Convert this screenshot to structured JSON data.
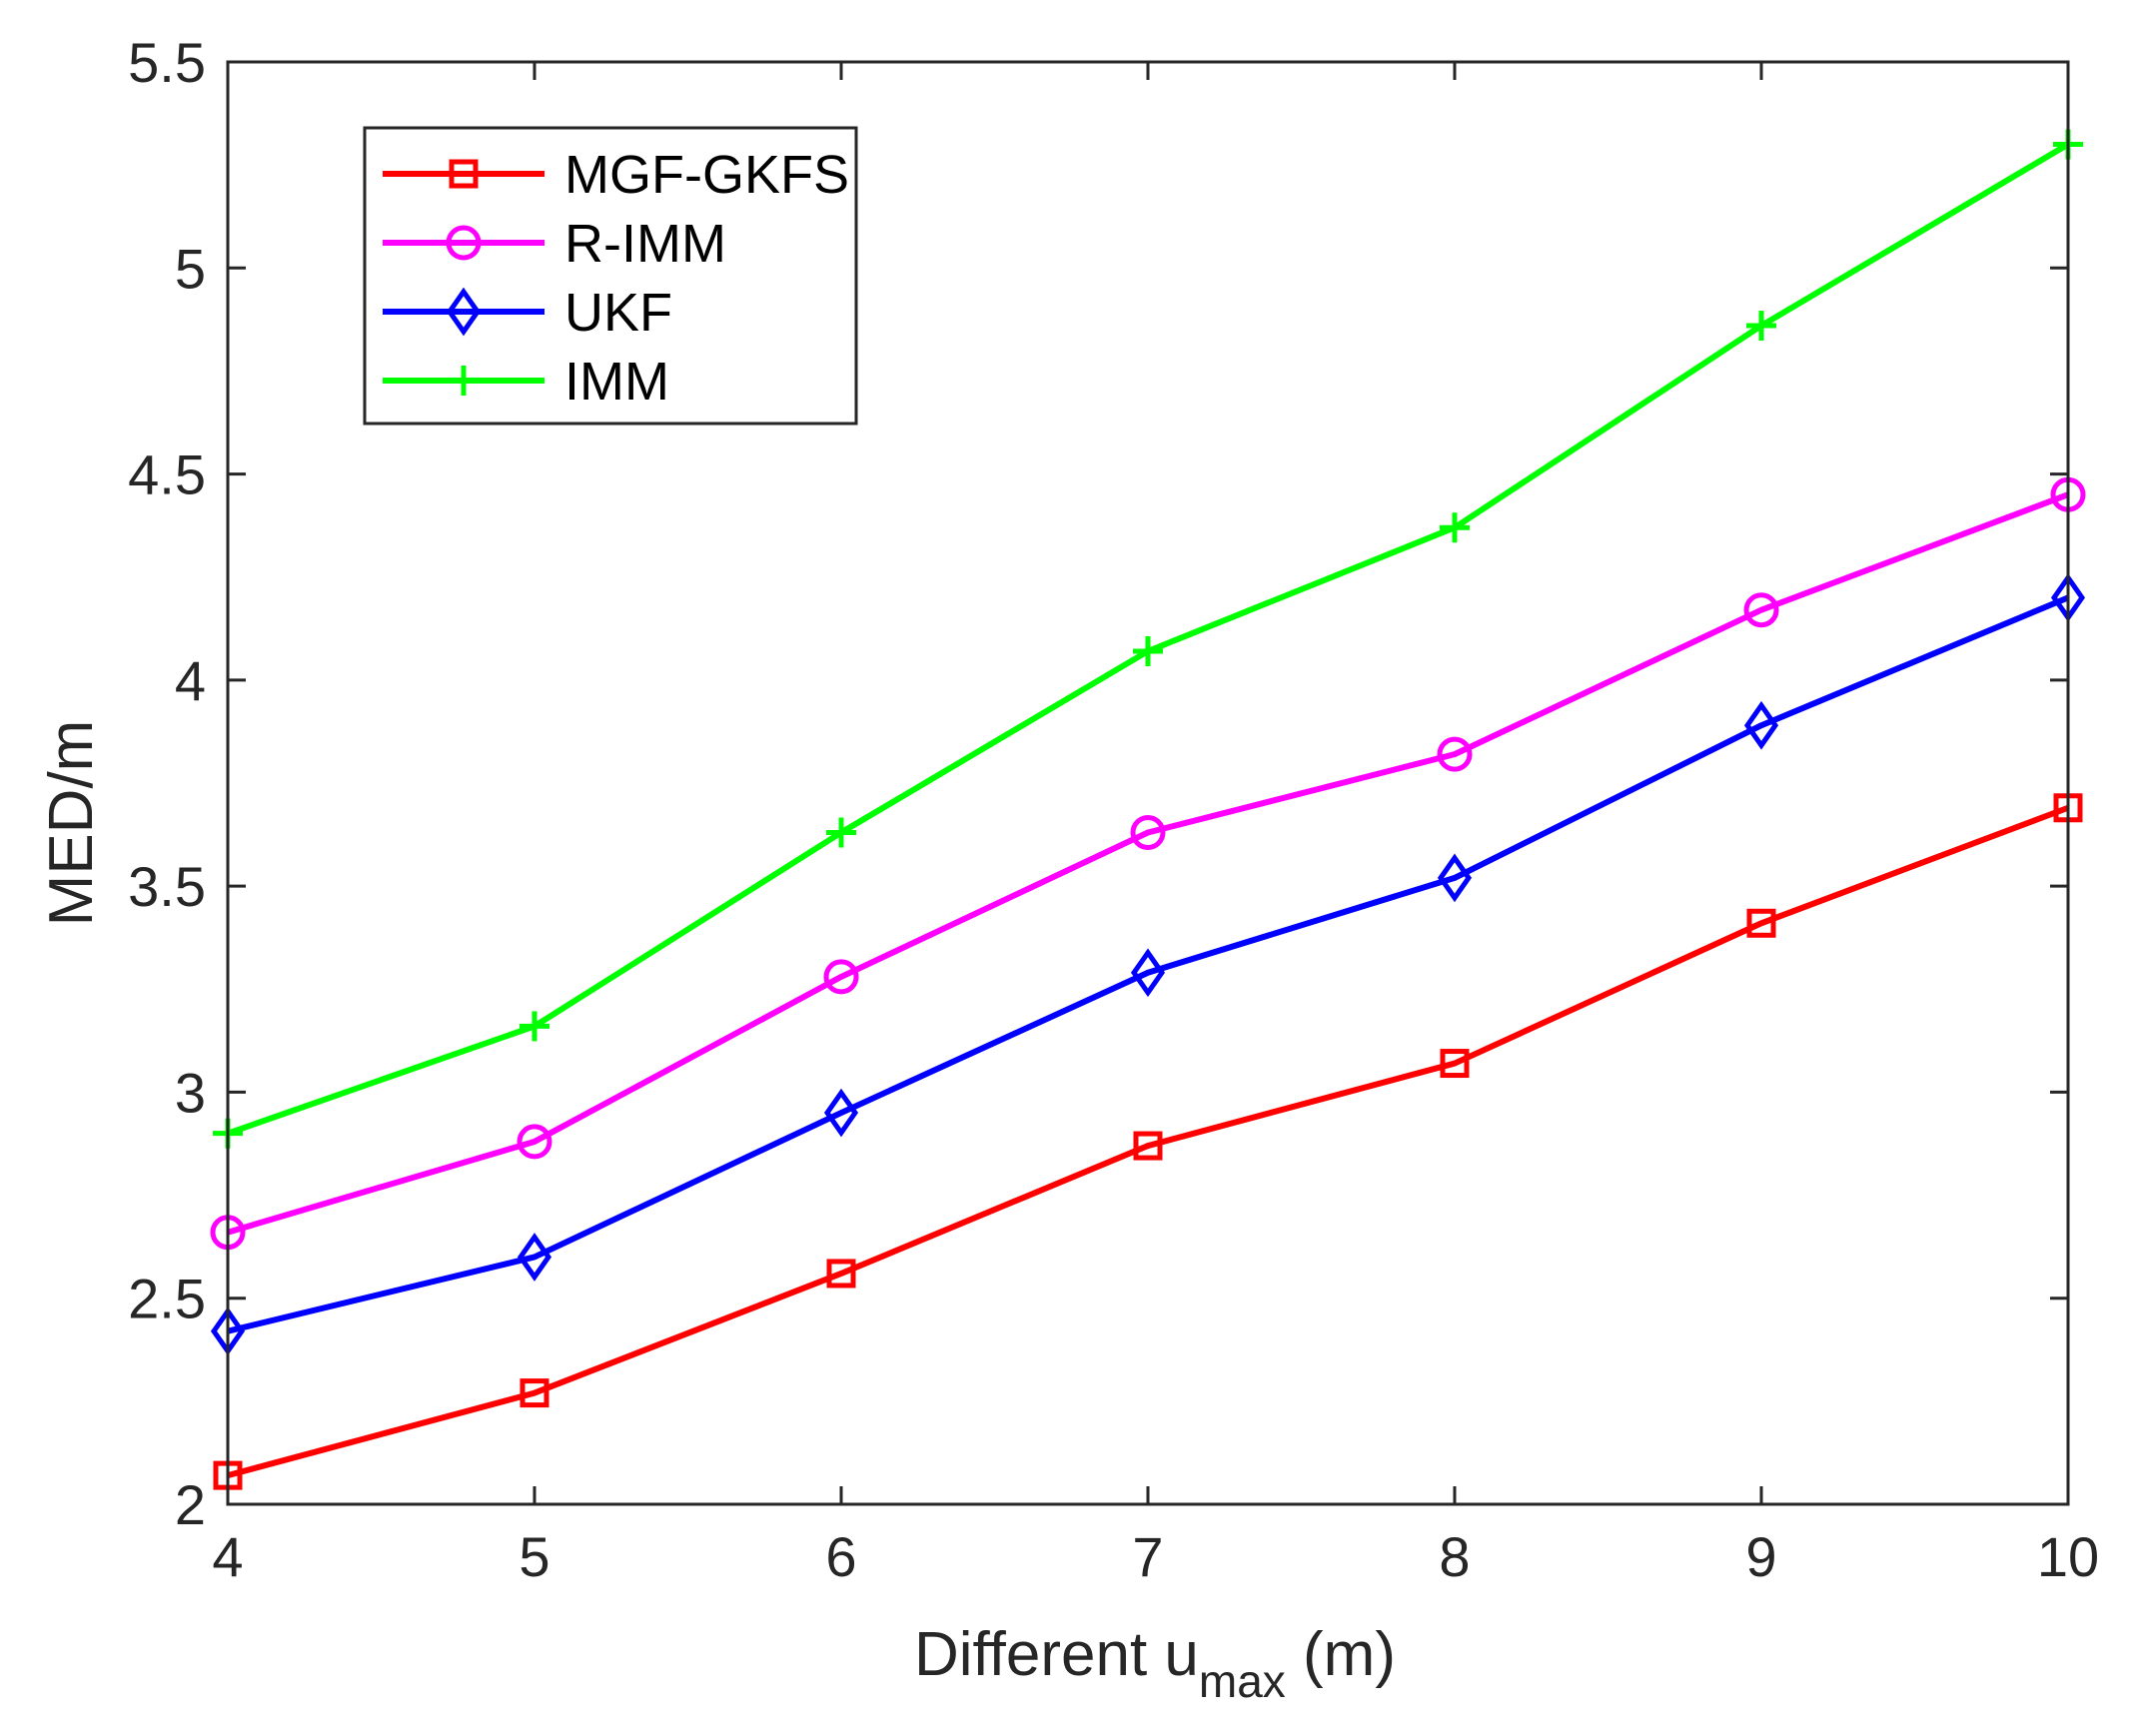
{
  "chart_data": {
    "type": "line",
    "title": "",
    "xlabel": {
      "prefix": "Different u",
      "subscript": "max",
      "suffix": " (m)"
    },
    "ylabel": "MED/m",
    "x": [
      4,
      5,
      6,
      7,
      8,
      9,
      10
    ],
    "xlim": [
      4,
      10
    ],
    "ylim": [
      2,
      5.5
    ],
    "xticks": [
      "4",
      "5",
      "6",
      "7",
      "8",
      "9",
      "10"
    ],
    "yticks": [
      "2",
      "2.5",
      "3",
      "3.5",
      "4",
      "4.5",
      "5",
      "5.5"
    ],
    "ytick_values": [
      2,
      2.5,
      3,
      3.5,
      4,
      4.5,
      5,
      5.5
    ],
    "grid": false,
    "legend_position": "top-left",
    "series": [
      {
        "name": "MGF-GKFS",
        "color": "#ff0000",
        "marker": "square",
        "values": [
          2.07,
          2.27,
          2.56,
          2.87,
          3.07,
          3.41,
          3.69
        ]
      },
      {
        "name": "R-IMM",
        "color": "#ff00ff",
        "marker": "circle",
        "values": [
          2.66,
          2.88,
          3.28,
          3.63,
          3.82,
          4.17,
          4.45
        ]
      },
      {
        "name": "UKF",
        "color": "#0000ff",
        "marker": "diamond",
        "values": [
          2.42,
          2.6,
          2.95,
          3.29,
          3.52,
          3.89,
          4.2
        ]
      },
      {
        "name": "IMM",
        "color": "#00ff00",
        "marker": "plus",
        "values": [
          2.9,
          3.16,
          3.63,
          4.07,
          4.37,
          4.86,
          5.3
        ]
      }
    ]
  }
}
